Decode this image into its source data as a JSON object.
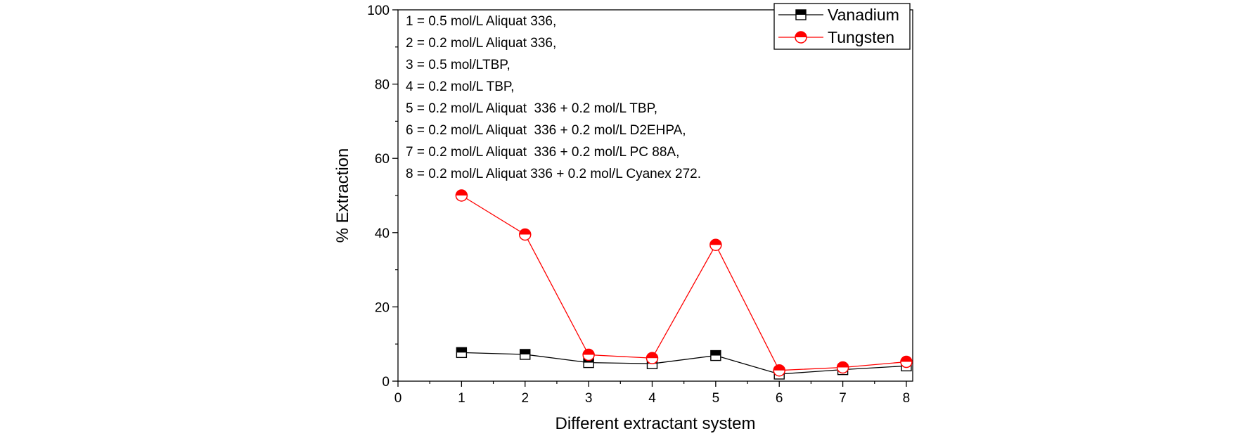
{
  "chart_data": {
    "type": "line",
    "title": "",
    "xlabel": "Different extractant system",
    "ylabel": "% Extraction",
    "xlim": [
      0,
      8.1
    ],
    "ylim": [
      0,
      100
    ],
    "x_ticks": [
      "0",
      "1",
      "2",
      "3",
      "4",
      "5",
      "6",
      "7",
      "8"
    ],
    "y_ticks": [
      "0",
      "20",
      "40",
      "60",
      "80",
      "100"
    ],
    "grid": false,
    "legend_position": "top-right",
    "series": [
      {
        "name": "Vanadium",
        "color": "#000000",
        "marker": "half-filled-square",
        "x": [
          1,
          2,
          3,
          4,
          5,
          6,
          7,
          8
        ],
        "y": [
          7.7,
          7.2,
          5.0,
          4.7,
          6.9,
          1.9,
          3.1,
          4.1
        ]
      },
      {
        "name": "Tungsten",
        "color": "#ff0000",
        "marker": "half-filled-circle",
        "x": [
          1,
          2,
          3,
          4,
          5,
          6,
          7,
          8
        ],
        "y": [
          50.0,
          39.5,
          7.1,
          6.2,
          36.7,
          2.9,
          3.7,
          5.2
        ]
      }
    ],
    "annotations": [
      "1 = 0.5 mol/L Aliquat 336,",
      "2 = 0.2 mol/L Aliquat 336,",
      "3 = 0.5 mol/LTBP,",
      "4 = 0.2 mol/L TBP,",
      "5 = 0.2 mol/L Aliquat  336 + 0.2 mol/L TBP,",
      "6 = 0.2 mol/L Aliquat  336 + 0.2 mol/L D2EHPA,",
      "7 = 0.2 mol/L Aliquat  336 + 0.2 mol/L PC 88A,",
      "8 = 0.2 mol/L Aliquat 336 + 0.2 mol/L Cyanex 272."
    ]
  }
}
